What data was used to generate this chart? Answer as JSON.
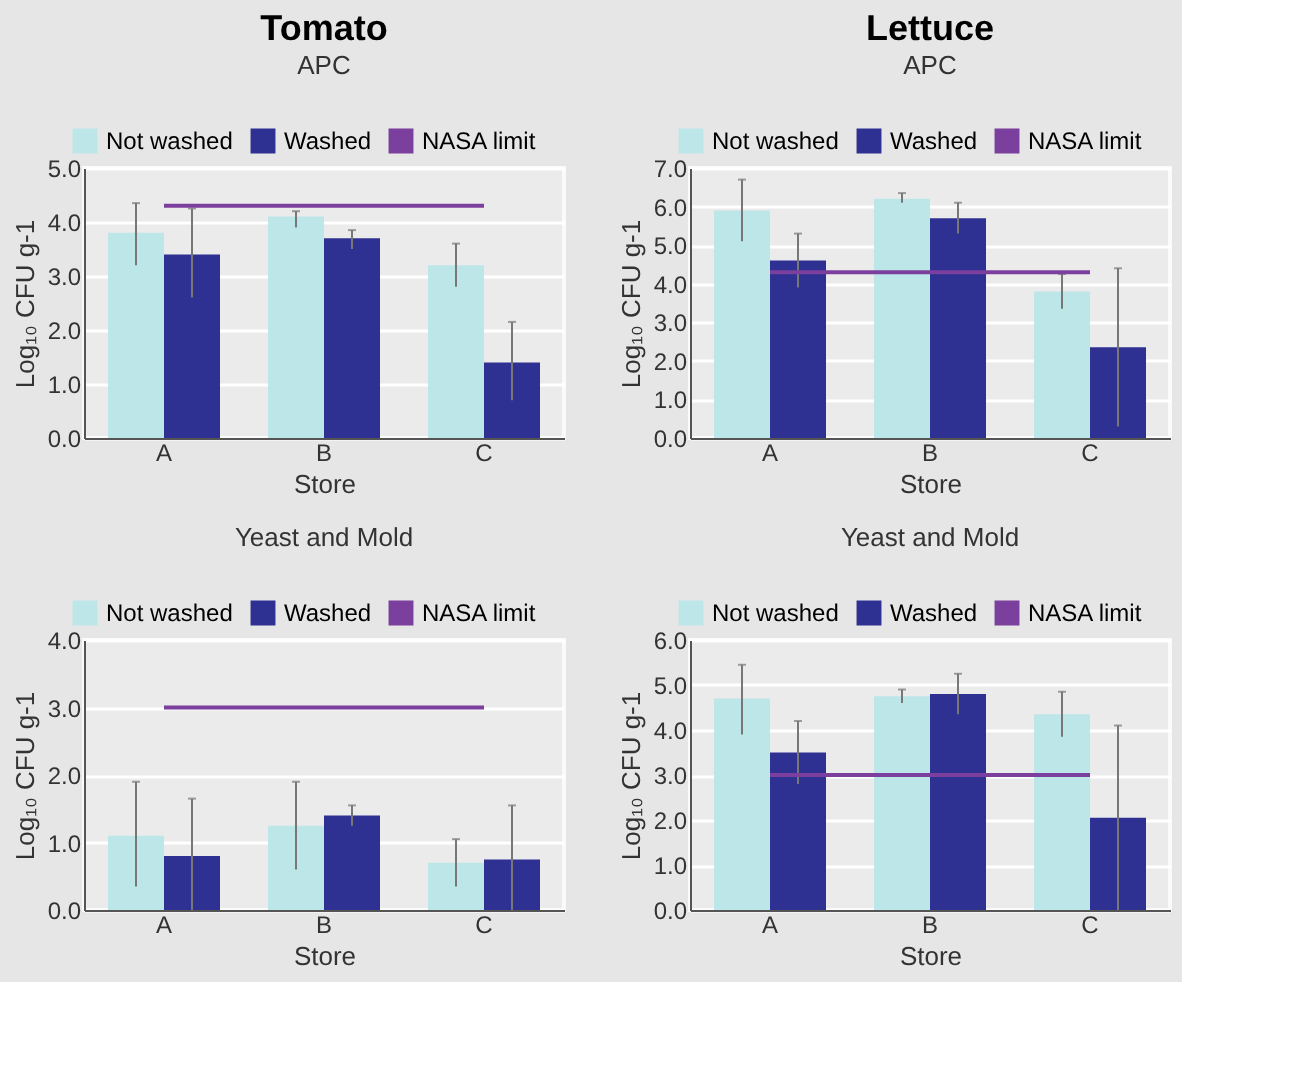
{
  "chart_data": [
    {
      "type": "bar",
      "title": "Tomato",
      "subtitle": "APC",
      "categories": [
        "A",
        "B",
        "C"
      ],
      "xlabel": "Store",
      "ylabel": "Log₁₀ CFU g-1",
      "ylim": [
        0,
        5
      ],
      "yticks": [
        {
          "value": 0,
          "label": "0.0"
        },
        {
          "value": 1,
          "label": "1.0"
        },
        {
          "value": 2,
          "label": "2.0"
        },
        {
          "value": 3,
          "label": "3.0"
        },
        {
          "value": 4,
          "label": "4.0"
        },
        {
          "value": 5,
          "label": "5.0"
        }
      ],
      "grid": "y",
      "legend": "top",
      "series": [
        {
          "name": "Not washed",
          "color": "#bde6e8",
          "values": [
            3.8,
            4.1,
            3.2
          ],
          "errors": [
            [
              3.2,
              4.35
            ],
            [
              3.9,
              4.2
            ],
            [
              2.8,
              3.6
            ]
          ]
        },
        {
          "name": "Washed",
          "color": "#2e3192",
          "values": [
            3.4,
            3.7,
            1.4
          ],
          "errors": [
            [
              2.6,
              4.25
            ],
            [
              3.5,
              3.85
            ],
            [
              0.7,
              2.15
            ]
          ]
        },
        {
          "name": "NASA limit",
          "type": "line",
          "color": "#7b3f9e",
          "values": [
            4.3,
            4.3,
            4.3
          ]
        }
      ]
    },
    {
      "type": "bar",
      "title": "Lettuce",
      "subtitle": "APC",
      "categories": [
        "A",
        "B",
        "C"
      ],
      "xlabel": "Store",
      "ylabel": "Log₁₀ CFU g-1",
      "ylim": [
        0,
        7
      ],
      "yticks": [
        {
          "value": 0,
          "label": "0.0"
        },
        {
          "value": 1,
          "label": "1.0"
        },
        {
          "value": 2,
          "label": "2.0"
        },
        {
          "value": 3,
          "label": "3.0"
        },
        {
          "value": 4,
          "label": "4.0"
        },
        {
          "value": 5,
          "label": "5.0"
        },
        {
          "value": 6,
          "label": "6.0"
        },
        {
          "value": 7,
          "label": "7.0"
        }
      ],
      "grid": "y",
      "legend": "top",
      "series": [
        {
          "name": "Not washed",
          "color": "#bde6e8",
          "values": [
            5.9,
            6.2,
            3.8
          ],
          "errors": [
            [
              5.1,
              6.7
            ],
            [
              6.1,
              6.35
            ],
            [
              3.35,
              4.25
            ]
          ]
        },
        {
          "name": "Washed",
          "color": "#2e3192",
          "values": [
            4.6,
            5.7,
            2.35
          ],
          "errors": [
            [
              3.9,
              5.3
            ],
            [
              5.3,
              6.1
            ],
            [
              0.3,
              4.4
            ]
          ]
        },
        {
          "name": "NASA limit",
          "type": "line",
          "color": "#7b3f9e",
          "values": [
            4.3,
            4.3,
            4.3
          ]
        }
      ]
    },
    {
      "type": "bar",
      "title": "Yeast and Mold",
      "categories": [
        "A",
        "B",
        "C"
      ],
      "xlabel": "Store",
      "ylabel": "Log₁₀ CFU g-1",
      "ylim": [
        0,
        4
      ],
      "yticks": [
        {
          "value": 0,
          "label": "0.0"
        },
        {
          "value": 1,
          "label": "1.0"
        },
        {
          "value": 2,
          "label": "2.0"
        },
        {
          "value": 3,
          "label": "3.0"
        },
        {
          "value": 4,
          "label": "4.0"
        }
      ],
      "grid": "y",
      "legend": "top",
      "series": [
        {
          "name": "Not washed",
          "color": "#bde6e8",
          "values": [
            1.1,
            1.25,
            0.7
          ],
          "errors": [
            [
              0.35,
              1.9
            ],
            [
              0.6,
              1.9
            ],
            [
              0.35,
              1.05
            ]
          ]
        },
        {
          "name": "Washed",
          "color": "#2e3192",
          "values": [
            0.8,
            1.4,
            0.75
          ],
          "errors": [
            [
              0,
              1.65
            ],
            [
              1.25,
              1.55
            ],
            [
              0,
              1.55
            ]
          ]
        },
        {
          "name": "NASA limit",
          "type": "line",
          "color": "#7b3f9e",
          "values": [
            3.0,
            3.0,
            3.0
          ]
        }
      ]
    },
    {
      "type": "bar",
      "title": "Yeast and Mold",
      "categories": [
        "A",
        "B",
        "C"
      ],
      "xlabel": "Store",
      "ylabel": "Log₁₀ CFU g-1",
      "ylim": [
        0,
        6
      ],
      "yticks": [
        {
          "value": 0,
          "label": "0.0"
        },
        {
          "value": 1,
          "label": "1.0"
        },
        {
          "value": 2,
          "label": "2.0"
        },
        {
          "value": 3,
          "label": "3.0"
        },
        {
          "value": 4,
          "label": "4.0"
        },
        {
          "value": 5,
          "label": "5.0"
        },
        {
          "value": 6,
          "label": "6.0"
        }
      ],
      "grid": "y",
      "legend": "top",
      "series": [
        {
          "name": "Not washed",
          "color": "#bde6e8",
          "values": [
            4.7,
            4.75,
            4.35
          ],
          "errors": [
            [
              3.9,
              5.45
            ],
            [
              4.6,
              4.9
            ],
            [
              3.85,
              4.85
            ]
          ]
        },
        {
          "name": "Washed",
          "color": "#2e3192",
          "values": [
            3.5,
            4.8,
            2.05
          ],
          "errors": [
            [
              2.8,
              4.2
            ],
            [
              4.35,
              5.25
            ],
            [
              0,
              4.1
            ]
          ]
        },
        {
          "name": "NASA limit",
          "type": "line",
          "color": "#7b3f9e",
          "values": [
            3.0,
            3.0,
            3.0
          ]
        }
      ]
    }
  ]
}
